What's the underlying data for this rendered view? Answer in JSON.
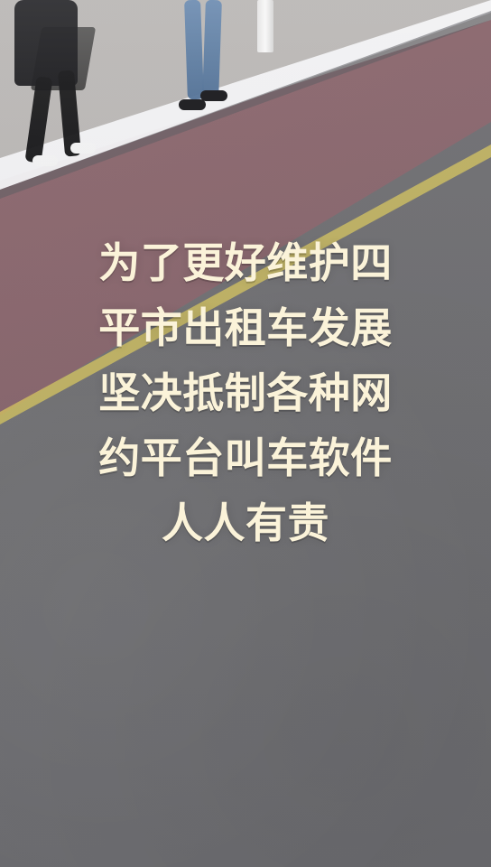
{
  "caption": {
    "lines": [
      "为了更好维护四",
      "平市出租车发展",
      "坚决抵制各种网",
      "约平台叫车软件",
      "人人有责"
    ]
  },
  "colors": {
    "caption_text": "#fbf3d9",
    "road_asphalt": "#6d6d70",
    "bike_lane": "#8f686e",
    "lane_marking": "#d7c65d",
    "snow": "#f4f4f6"
  }
}
